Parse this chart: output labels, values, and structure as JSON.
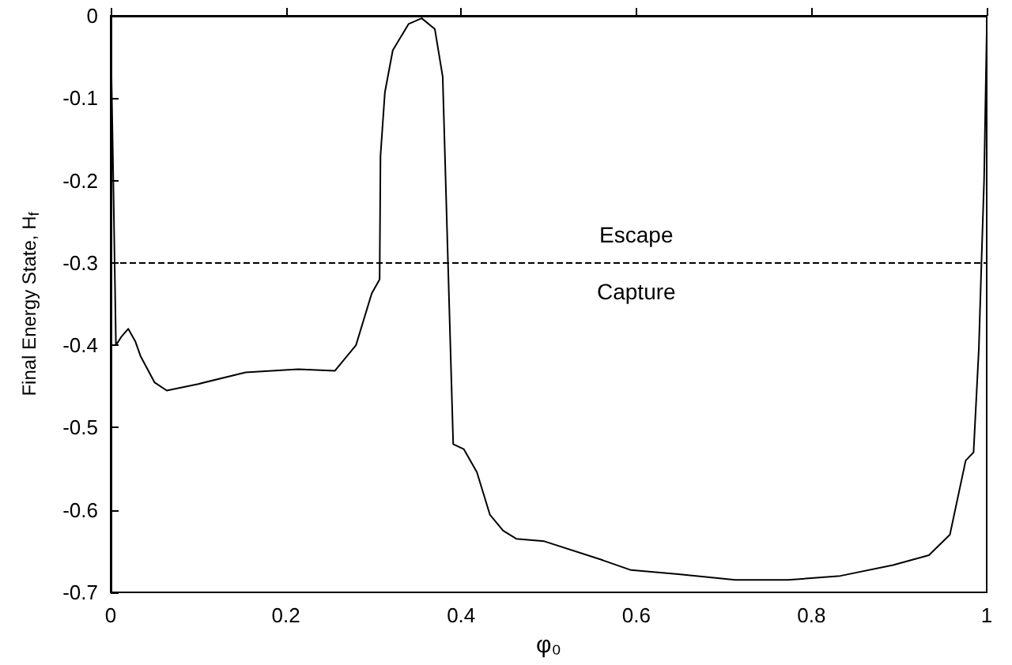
{
  "chart_data": {
    "type": "line",
    "xlabel": "φ₀",
    "ylabel": "Final Energy State, H$_{f}$",
    "xlim": [
      0,
      1
    ],
    "xticks": [
      0,
      0.2,
      0.4,
      0.6,
      0.8,
      1
    ],
    "ylim": [
      -0.7,
      0
    ],
    "yticks": [
      -0.7,
      -0.6,
      -0.5,
      -0.4,
      -0.3,
      -0.2,
      -0.1,
      0
    ],
    "grid": false,
    "marker": "none",
    "line_style": "solid",
    "series": [
      {
        "color": "#000000",
        "x": [
          0,
          0.003,
          0.006,
          0.012,
          0.02,
          0.028,
          0.034,
          0.05,
          0.064,
          0.1,
          0.154,
          0.214,
          0.256,
          0.28,
          0.298,
          0.307,
          0.308,
          0.313,
          0.322,
          0.34,
          0.355,
          0.37,
          0.379,
          0.385,
          0.391,
          0.403,
          0.418,
          0.433,
          0.448,
          0.463,
          0.495,
          0.559,
          0.594,
          0.648,
          0.713,
          0.773,
          0.833,
          0.893,
          0.934,
          0.958,
          0.976,
          0.985,
          0.991,
          0.994,
          0.997,
          1
        ],
        "values": [
          -0.02,
          -0.2,
          -0.4,
          -0.39,
          -0.38,
          -0.395,
          -0.413,
          -0.445,
          -0.455,
          -0.447,
          -0.433,
          -0.429,
          -0.431,
          -0.4,
          -0.337,
          -0.32,
          -0.17,
          -0.093,
          -0.042,
          -0.01,
          -0.003,
          -0.016,
          -0.074,
          -0.298,
          -0.52,
          -0.526,
          -0.554,
          -0.606,
          -0.625,
          -0.635,
          -0.638,
          -0.66,
          -0.673,
          -0.678,
          -0.685,
          -0.685,
          -0.68,
          -0.667,
          -0.655,
          -0.63,
          -0.54,
          -0.53,
          -0.405,
          -0.3,
          -0.2,
          -0.02
        ]
      }
    ],
    "ref_lines": [
      {
        "axis": "y",
        "value": -0.3,
        "line_style": "dashed",
        "color": "#000000"
      }
    ],
    "annotations": [
      "Escape",
      "Capture"
    ]
  }
}
